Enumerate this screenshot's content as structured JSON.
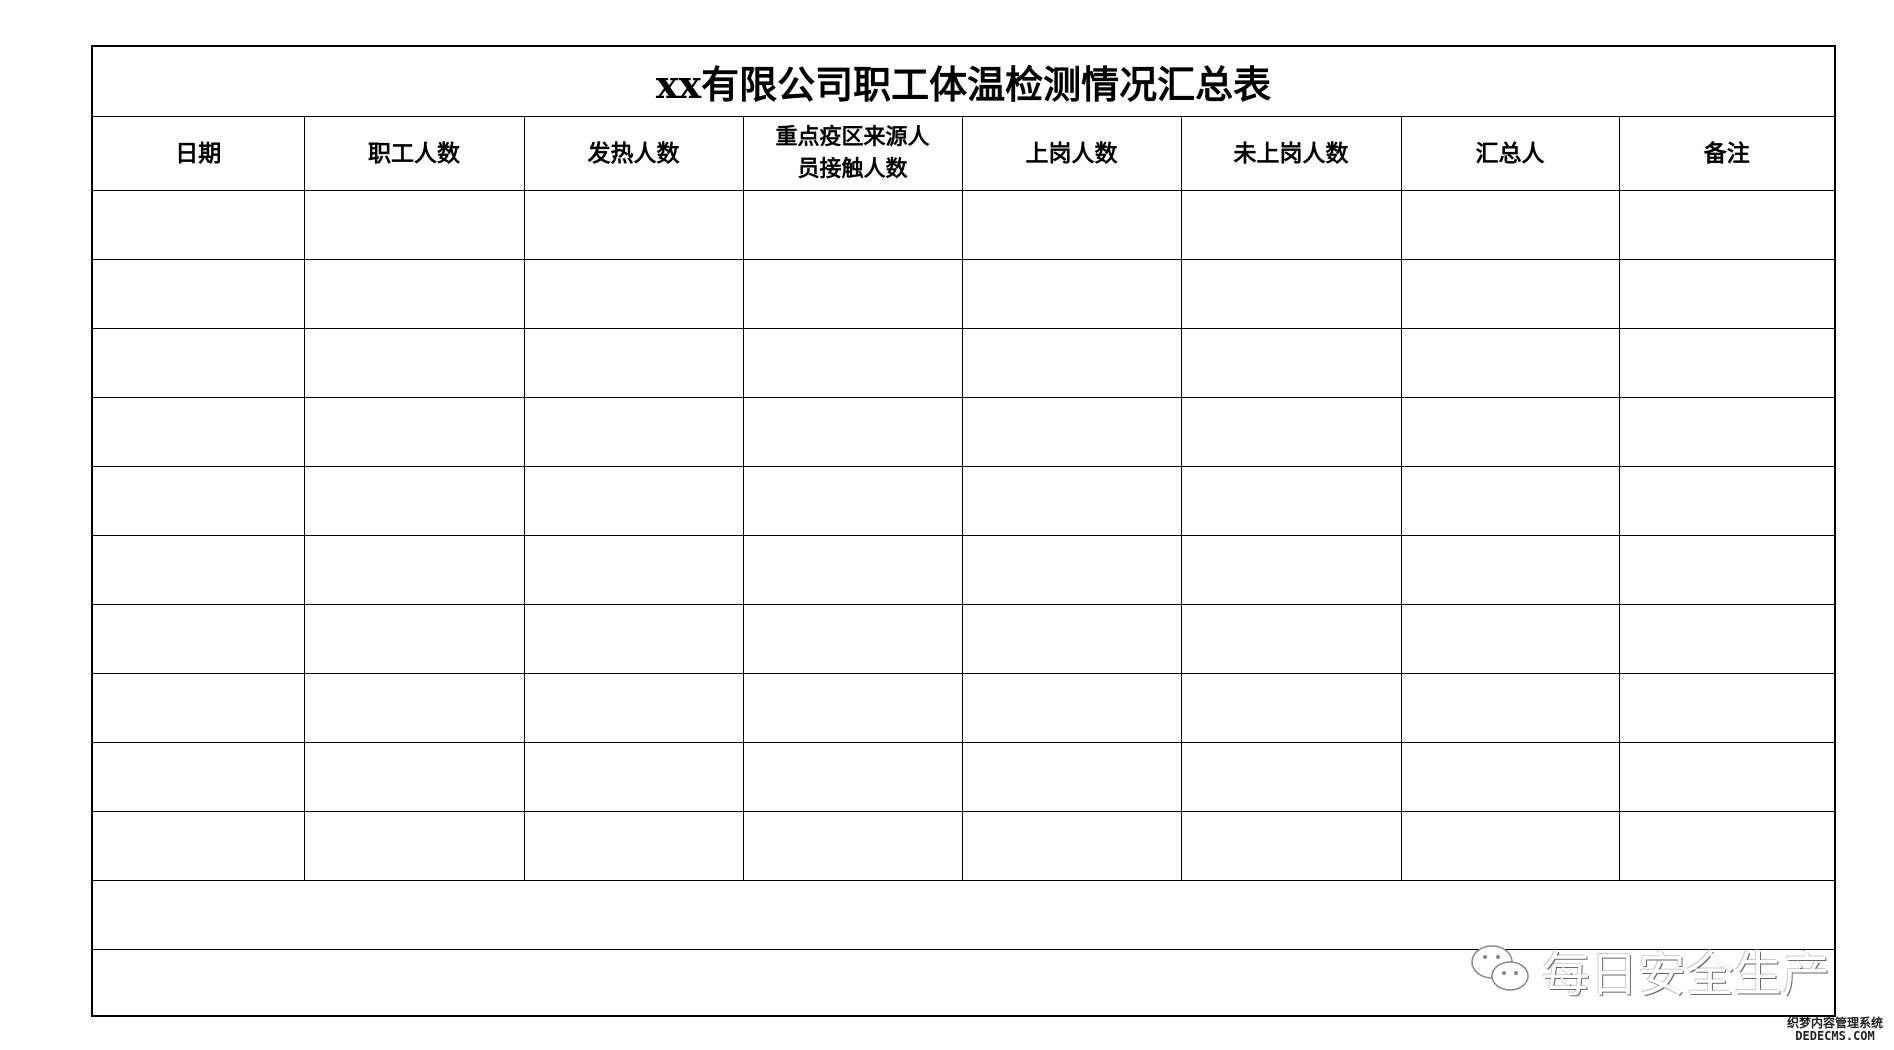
{
  "title": "xx有限公司职工体温检测情况汇总表",
  "columns": [
    "日期",
    "职工人数",
    "发热人数",
    "重点疫区来源人员接触人数",
    "上岗人数",
    "未上岗人数",
    "汇总人",
    "备注"
  ],
  "data_row_count": 10,
  "watermark": {
    "icon": "wechat-icon",
    "text": "每日安全生产"
  },
  "site_mark": {
    "line1": "织梦内容管理系统",
    "line2": "DEDECMS.COM"
  }
}
